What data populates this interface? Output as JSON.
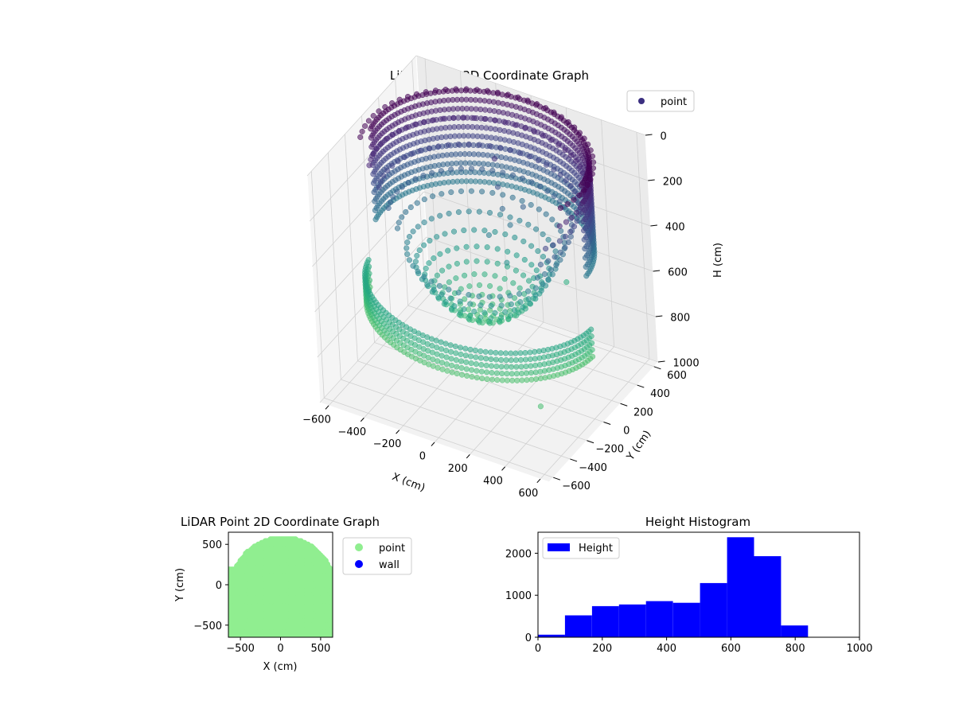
{
  "chart_data": [
    {
      "type": "scatter",
      "projection": "3d",
      "title": "LiDAR Point 3D Coordinate Graph",
      "xlabel": "X (cm)",
      "ylabel": "Y (cm)",
      "zlabel": "H (cm)",
      "xlim": [
        -650,
        650
      ],
      "ylim": [
        -650,
        650
      ],
      "zlim": [
        1000,
        0
      ],
      "zaxis_inverted": true,
      "xticks": [
        -600,
        -400,
        -200,
        0,
        200,
        400,
        600
      ],
      "yticks": [
        -600,
        -400,
        -200,
        0,
        200,
        400,
        600
      ],
      "zticks": [
        0,
        200,
        400,
        600,
        800,
        1000
      ],
      "colormap": "viridis",
      "color_by": "height",
      "legend": {
        "entries": [
          "point"
        ],
        "placement": "upper-right"
      },
      "legend_color": "#3b2f80",
      "series": [
        {
          "name": "point",
          "shape": "bowl",
          "rim_radius": 600,
          "rim_height": 0,
          "center_height": 700,
          "outer_band_radius": 620,
          "outer_band_height": 650,
          "stray_points": [
            {
              "x": -50,
              "y": 300,
              "h": 150
            },
            {
              "x": -20,
              "y": 260,
              "h": 250
            },
            {
              "x": 10,
              "y": 240,
              "h": 330
            },
            {
              "x": 60,
              "y": 220,
              "h": 380
            },
            {
              "x": 120,
              "y": 260,
              "h": 300
            },
            {
              "x": -30,
              "y": 150,
              "h": 420
            },
            {
              "x": 80,
              "y": 120,
              "h": 500
            },
            {
              "x": 200,
              "y": 180,
              "h": 560
            },
            {
              "x": 300,
              "y": 350,
              "h": 620
            },
            {
              "x": 600,
              "y": -600,
              "h": 700
            }
          ]
        }
      ],
      "grid": true
    },
    {
      "type": "scatter",
      "title": "LiDAR Point 2D Coordinate Graph",
      "xlabel": "X (cm)",
      "ylabel": "Y (cm)",
      "xlim": [
        -650,
        650
      ],
      "ylim": [
        -650,
        650
      ],
      "xticks": [
        -500,
        0,
        500
      ],
      "yticks": [
        -500,
        0,
        500
      ],
      "legend": {
        "entries": [
          "point",
          "wall"
        ],
        "placement": "outside-right"
      },
      "series": [
        {
          "name": "point",
          "color": "#90ee90"
        },
        {
          "name": "wall",
          "color": "#0000ff"
        }
      ]
    },
    {
      "type": "bar",
      "subtype": "histogram",
      "title": "Height Histogram",
      "xlim": [
        0,
        1000
      ],
      "ylim": [
        0,
        2500
      ],
      "xticks": [
        0,
        200,
        400,
        600,
        800,
        1000
      ],
      "yticks": [
        0,
        1000,
        2000
      ],
      "legend": {
        "entries": [
          "Height"
        ],
        "placement": "upper-left"
      },
      "color": "#0000ff",
      "bin_edges": [
        0,
        84,
        168,
        252,
        336,
        420,
        504,
        588,
        672,
        756,
        840
      ],
      "series": [
        {
          "name": "Height",
          "values": [
            60,
            520,
            740,
            780,
            860,
            820,
            1290,
            2380,
            1930,
            280
          ]
        }
      ]
    }
  ]
}
